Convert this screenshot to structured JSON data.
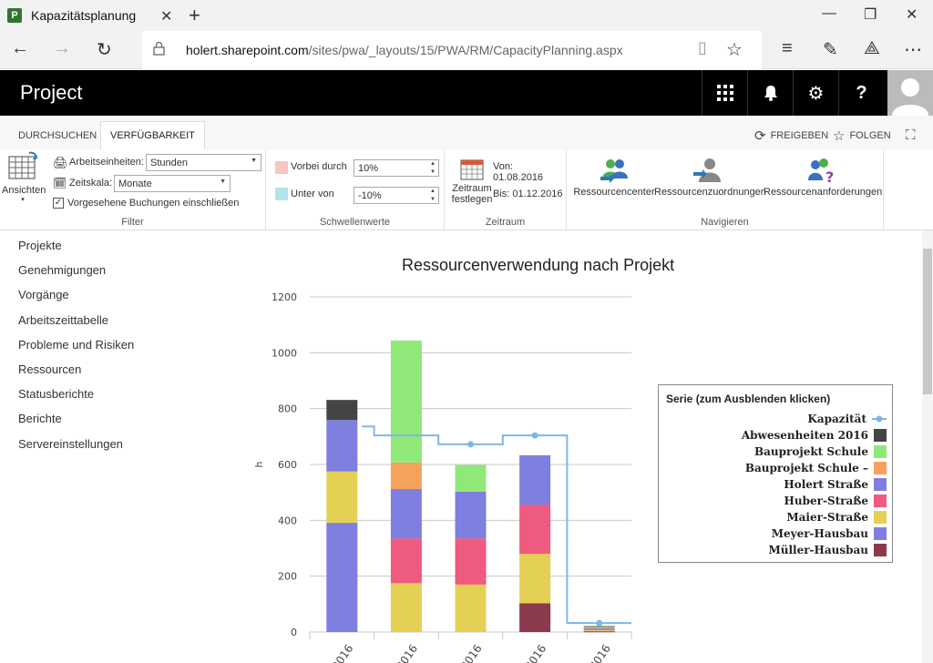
{
  "browser": {
    "tab_title": "Kapazitätsplanung",
    "url_host": "holert.sharepoint.com",
    "url_path": "/sites/pwa/_layouts/15/PWA/RM/CapacityPlanning.aspx"
  },
  "app": {
    "title": "Project"
  },
  "ribbon_tabs": [
    "DURCHSUCHEN",
    "VERFÜGBARKEIT"
  ],
  "ribbon_actions": {
    "share": "FREIGEBEN",
    "follow": "FOLGEN"
  },
  "filter": {
    "views_label": "Ansichten",
    "work_units_label": "Arbeitseinheiten:",
    "work_units_value": "Stunden",
    "timescale_label": "Zeitskala:",
    "timescale_value": "Monate",
    "include_bookings_label": "Vorgesehene Buchungen einschließen",
    "include_bookings_checked": true,
    "group_label": "Filter"
  },
  "thresholds": {
    "over_label": "Vorbei durch",
    "over_value": "10%",
    "under_label": "Unter von",
    "under_value": "-10%",
    "group_label": "Schwellenwerte",
    "over_color": "#f7c6c1",
    "under_color": "#b4e4ea"
  },
  "period": {
    "set_label_1": "Zeitraum",
    "set_label_2": "festlegen",
    "from": "Von: 01.08.2016",
    "to": "Bis: 01.12.2016",
    "group_label": "Zeitraum"
  },
  "navigate": {
    "resource_center": "Ressourcencenter",
    "resource_assignments": "Ressourcenzuordnungen",
    "resource_requests": "Ressourcenanforderungen",
    "group_label": "Navigieren"
  },
  "left_nav": [
    "Projekte",
    "Genehmigungen",
    "Vorgänge",
    "Arbeitszeittabelle",
    "Probleme und Risiken",
    "Ressourcen",
    "Statusberichte",
    "Berichte",
    "Servereinstellungen"
  ],
  "legend_title": "Serie (zum Ausblenden klicken)",
  "chart_data": {
    "type": "bar",
    "stacked": true,
    "title": "Ressourcenverwendung nach Projekt",
    "ylabel": "h",
    "xlabel": "",
    "ylim": [
      0,
      1200
    ],
    "yticks": [
      0,
      200,
      400,
      600,
      800,
      1000,
      1200
    ],
    "grid": true,
    "legend_position": "right",
    "categories": [
      "2016",
      "2016",
      "2016",
      "2016",
      "2016"
    ],
    "series": [
      {
        "name": "Müller-Hausbau",
        "color": "#8b3a4e",
        "values": [
          0,
          0,
          0,
          103,
          2
        ]
      },
      {
        "name": "Meyer-Hausbau",
        "color": "#7f7fe0",
        "values": [
          391,
          0,
          0,
          0,
          2
        ]
      },
      {
        "name": "Maier-Straße",
        "color": "#e4d055",
        "values": [
          184,
          175,
          170,
          177,
          3
        ]
      },
      {
        "name": "Huber-Straße",
        "color": "#ef5a7f",
        "values": [
          0,
          160,
          165,
          175,
          3
        ]
      },
      {
        "name": "Holert Straße",
        "color": "#7f7fe0",
        "values": [
          184,
          177,
          168,
          178,
          3
        ]
      },
      {
        "name": "Bauprojekt Schule –",
        "color": "#f5a25c",
        "values": [
          0,
          95,
          0,
          0,
          3
        ]
      },
      {
        "name": "Bauprojekt Schule",
        "color": "#8fe878",
        "values": [
          0,
          437,
          95,
          0,
          3
        ]
      },
      {
        "name": "Abwesenheiten 2016",
        "color": "#444446",
        "values": [
          72,
          0,
          0,
          0,
          2
        ]
      }
    ],
    "capacity": {
      "name": "Kapazität",
      "color": "#7fb6e6",
      "values": [
        736,
        704,
        672,
        704,
        32
      ]
    }
  }
}
